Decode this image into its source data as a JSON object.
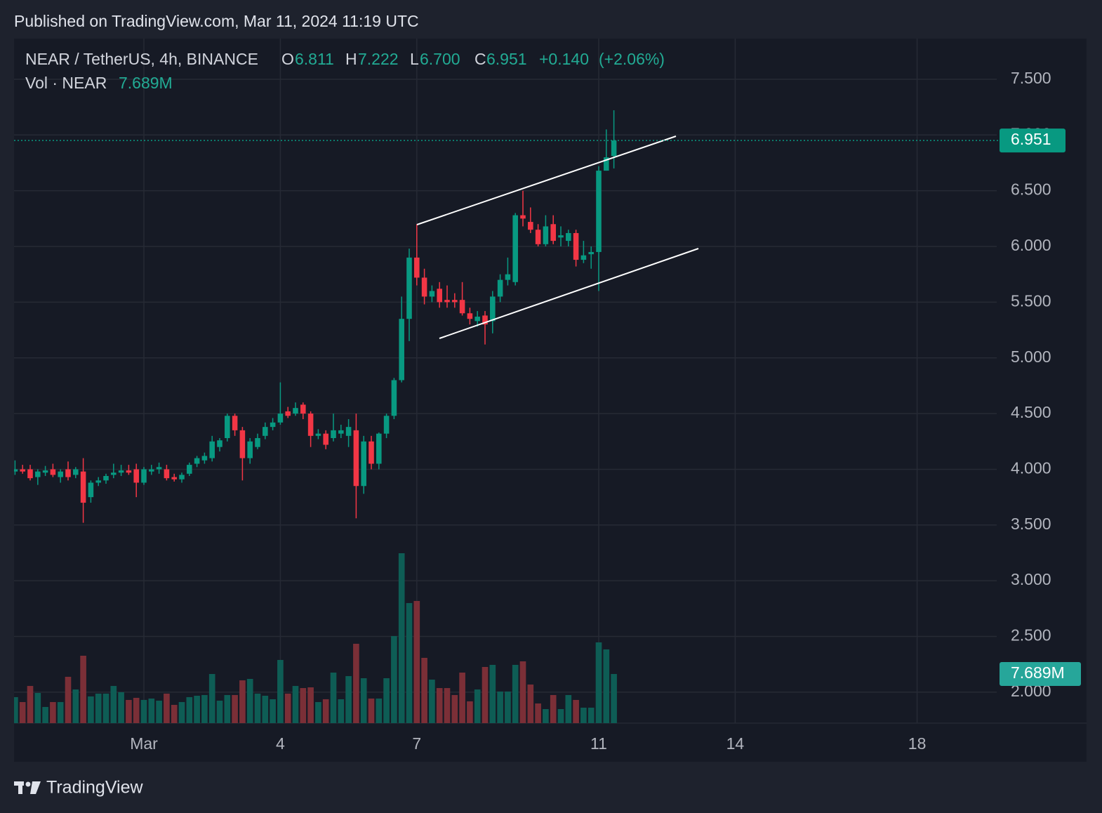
{
  "header": {
    "published": "Published on TradingView.com, Mar 11, 2024 11:19 UTC"
  },
  "footer": {
    "brand": "TradingView"
  },
  "chart_data": {
    "type": "candlestick",
    "title": "NEAR / TetherUS, 4h, BINANCE",
    "ohlc_keys": [
      "O",
      "H",
      "L",
      "C"
    ],
    "ohlc_labels": [
      "6.811",
      "7.222",
      "6.700",
      "6.951"
    ],
    "change": "+0.140",
    "change_percent": "(+2.06%)",
    "volume_name": "Vol · NEAR",
    "volume_label": "7.689M",
    "last_price_label": "6.951",
    "up_color": "#089981",
    "down_color": "#f23645",
    "volume_up_color": "#0e5d55",
    "volume_down_color": "#7b2f37",
    "grid": true,
    "ylim": [
      1.722,
      7.865
    ],
    "yticks": [
      {
        "value": 2,
        "label": "2.000"
      },
      {
        "value": 2.5,
        "label": "2.500"
      },
      {
        "value": 3,
        "label": "3.000"
      },
      {
        "value": 3.5,
        "label": "3.500"
      },
      {
        "value": 4,
        "label": "4.000"
      },
      {
        "value": 4.5,
        "label": "4.500"
      },
      {
        "value": 5,
        "label": "5.000"
      },
      {
        "value": 5.5,
        "label": "5.500"
      },
      {
        "value": 6,
        "label": "6.000"
      },
      {
        "value": 6.5,
        "label": "6.500"
      },
      {
        "value": 7,
        "label": "7.000"
      },
      {
        "value": 7.5,
        "label": "7.500"
      }
    ],
    "categories": [
      null,
      null,
      null,
      null,
      null,
      null,
      null,
      null,
      null,
      null,
      null,
      null,
      null,
      null,
      null,
      null,
      null,
      "Mar",
      null,
      null,
      null,
      null,
      null,
      null,
      null,
      null,
      null,
      null,
      null,
      null,
      null,
      null,
      null,
      null,
      null,
      "4",
      null,
      null,
      null,
      null,
      null,
      null,
      null,
      null,
      null,
      null,
      null,
      null,
      null,
      null,
      null,
      null,
      null,
      "7",
      null,
      null,
      null,
      null,
      null,
      null,
      null,
      null,
      null,
      null,
      null,
      null,
      null,
      null,
      null,
      null,
      null,
      null,
      null,
      null,
      null,
      null,
      null,
      "11",
      null,
      null,
      null,
      null,
      null,
      null,
      null,
      null,
      null,
      null,
      null,
      null,
      null,
      null,
      null,
      null,
      null,
      "14",
      null,
      null,
      null,
      null,
      null,
      null,
      null,
      null,
      null,
      null,
      null,
      null,
      null,
      null,
      null,
      null,
      null,
      null,
      null,
      null,
      null,
      null,
      null,
      "18",
      null,
      null,
      null,
      null,
      null,
      null,
      null,
      null,
      null,
      null
    ],
    "open": [
      3.98,
      4.0,
      4.0,
      3.93,
      3.97,
      4.0,
      3.93,
      4.0,
      3.95,
      3.98,
      3.75,
      3.88,
      3.9,
      3.95,
      3.97,
      3.99,
      4.0,
      3.88,
      3.98,
      4.0,
      4.0,
      3.93,
      3.91,
      3.96,
      4.05,
      4.08,
      4.1,
      4.2,
      4.28,
      4.48,
      4.35,
      4.1,
      4.2,
      4.3,
      4.38,
      4.42,
      4.52,
      4.5,
      4.58,
      4.5,
      4.3,
      4.32,
      4.28,
      4.32,
      4.3,
      4.35,
      3.85,
      4.25,
      4.05,
      4.32,
      4.48,
      4.8,
      5.35,
      5.9,
      5.72,
      5.55,
      5.62,
      5.52,
      5.52,
      5.52,
      5.4,
      5.33,
      5.38,
      5.33,
      5.55,
      5.7,
      5.68,
      6.28,
      6.22,
      6.15,
      6.02,
      6.2,
      6.08,
      6.05,
      6.12,
      5.88,
      5.93,
      5.95,
      6.68,
      6.811,
      null,
      null,
      null,
      null,
      null,
      null,
      null,
      null,
      null,
      null,
      null,
      null,
      null,
      null,
      null,
      null,
      null,
      null,
      null,
      null,
      null,
      null,
      null,
      null,
      null,
      null,
      null,
      null,
      null,
      null,
      null,
      null,
      null,
      null,
      null,
      null,
      null,
      null,
      null,
      null,
      null,
      null,
      null,
      null,
      null,
      null,
      null,
      null,
      null,
      null
    ],
    "high": [
      4.08,
      4.04,
      4.04,
      4.0,
      4.03,
      4.05,
      4.0,
      4.07,
      4.02,
      4.1,
      3.9,
      3.93,
      3.96,
      4.05,
      4.04,
      4.04,
      4.05,
      4.02,
      4.04,
      4.06,
      4.04,
      3.96,
      3.97,
      4.06,
      4.12,
      4.15,
      4.3,
      4.28,
      4.5,
      4.5,
      4.38,
      4.28,
      4.32,
      4.42,
      4.46,
      4.78,
      4.56,
      4.6,
      4.6,
      4.52,
      4.36,
      4.35,
      4.5,
      4.4,
      4.45,
      4.5,
      4.3,
      4.3,
      4.33,
      4.5,
      4.82,
      5.55,
      5.98,
      6.2,
      5.8,
      5.65,
      5.68,
      5.65,
      5.58,
      5.68,
      5.45,
      5.42,
      5.42,
      5.6,
      5.75,
      5.9,
      6.3,
      6.5,
      6.35,
      6.2,
      6.28,
      6.28,
      6.18,
      6.15,
      6.15,
      6.05,
      6.0,
      6.72,
      7.05,
      7.222,
      null,
      null,
      null,
      null,
      null,
      null,
      null,
      null,
      null,
      null,
      null,
      null,
      null,
      null,
      null,
      null,
      null,
      null,
      null,
      null,
      null,
      null,
      null,
      null,
      null,
      null,
      null,
      null,
      null,
      null,
      null,
      null,
      null,
      null,
      null,
      null,
      null,
      null,
      null,
      null,
      null,
      null,
      null,
      null,
      null,
      null,
      null,
      null,
      null,
      null
    ],
    "low": [
      3.95,
      3.96,
      3.9,
      3.86,
      3.94,
      3.93,
      3.88,
      3.9,
      3.92,
      3.52,
      3.7,
      3.85,
      3.87,
      3.92,
      3.94,
      3.95,
      3.75,
      3.86,
      3.95,
      3.96,
      3.9,
      3.89,
      3.88,
      3.94,
      4.02,
      4.05,
      4.07,
      4.16,
      4.25,
      4.3,
      3.9,
      4.05,
      4.18,
      4.27,
      4.35,
      4.4,
      4.46,
      4.48,
      4.45,
      4.2,
      4.27,
      4.18,
      4.25,
      4.28,
      4.2,
      3.56,
      3.78,
      4.0,
      4.0,
      4.28,
      4.45,
      4.78,
      5.15,
      5.65,
      5.48,
      5.5,
      5.45,
      5.45,
      5.45,
      5.38,
      5.3,
      5.28,
      5.12,
      5.22,
      5.5,
      5.65,
      5.65,
      6.18,
      6.12,
      6.0,
      6.0,
      6.02,
      6.0,
      6.0,
      5.82,
      5.85,
      5.8,
      5.6,
      6.68,
      6.7,
      null,
      null,
      null,
      null,
      null,
      null,
      null,
      null,
      null,
      null,
      null,
      null,
      null,
      null,
      null,
      null,
      null,
      null,
      null,
      null,
      null,
      null,
      null,
      null,
      null,
      null,
      null,
      null,
      null,
      null,
      null,
      null,
      null,
      null,
      null,
      null,
      null,
      null,
      null,
      null,
      null,
      null,
      null,
      null,
      null,
      null,
      null,
      null,
      null,
      null
    ],
    "close": [
      4.0,
      3.98,
      3.92,
      3.98,
      3.99,
      3.95,
      3.98,
      3.93,
      4.0,
      3.7,
      3.88,
      3.9,
      3.94,
      3.97,
      3.99,
      3.97,
      3.88,
      4.0,
      4.0,
      4.02,
      3.92,
      3.91,
      3.95,
      4.04,
      4.1,
      4.12,
      4.25,
      4.26,
      4.48,
      4.35,
      4.1,
      4.25,
      4.28,
      4.38,
      4.42,
      4.5,
      4.48,
      4.55,
      4.5,
      4.3,
      4.32,
      4.22,
      4.35,
      4.35,
      4.38,
      3.85,
      4.25,
      4.05,
      4.32,
      4.48,
      4.8,
      5.35,
      5.9,
      5.72,
      5.55,
      5.6,
      5.5,
      5.5,
      5.5,
      5.4,
      5.35,
      5.37,
      5.3,
      5.55,
      5.7,
      5.75,
      6.28,
      6.25,
      6.15,
      6.02,
      6.18,
      6.05,
      6.1,
      6.12,
      5.88,
      5.92,
      5.95,
      6.68,
      6.8,
      6.951,
      null,
      null,
      null,
      null,
      null,
      null,
      null,
      null,
      null,
      null,
      null,
      null,
      null,
      null,
      null,
      null,
      null,
      null,
      null,
      null,
      null,
      null,
      null,
      null,
      null,
      null,
      null,
      null,
      null,
      null,
      null,
      null,
      null,
      null,
      null,
      null,
      null,
      null,
      null,
      null,
      null,
      null,
      null,
      null,
      null,
      null,
      null,
      null,
      null,
      null
    ],
    "volume": [
      4.07,
      3.3,
      5.82,
      4.73,
      2.53,
      3.3,
      3.3,
      7.25,
      5.27,
      10.55,
      4.18,
      4.62,
      4.62,
      5.82,
      4.84,
      3.63,
      3.96,
      3.63,
      3.85,
      3.52,
      4.62,
      2.86,
      3.3,
      4.07,
      4.29,
      4.4,
      7.69,
      3.52,
      4.4,
      4.4,
      6.7,
      6.92,
      4.62,
      4.29,
      3.74,
      9.89,
      4.62,
      5.82,
      5.49,
      5.6,
      3.3,
      3.74,
      7.91,
      3.74,
      7.36,
      12.42,
      7.03,
      3.85,
      3.85,
      7.03,
      13.63,
      26.59,
      18.79,
      19.12,
      10.22,
      6.81,
      5.49,
      5.49,
      4.4,
      7.91,
      3.41,
      5.27,
      8.79,
      9.12,
      4.95,
      4.95,
      9.12,
      9.67,
      6.04,
      3.08,
      2.2,
      4.4,
      2.2,
      4.4,
      3.63,
      2.42,
      2.42,
      12.64,
      11.54,
      7.689,
      null,
      null,
      null,
      null,
      null,
      null,
      null,
      null,
      null,
      null,
      null,
      null,
      null,
      null,
      null,
      null,
      null,
      null,
      null,
      null,
      null,
      null,
      null,
      null,
      null,
      null,
      null,
      null,
      null,
      null,
      null,
      null,
      null,
      null,
      null,
      null,
      null,
      null,
      null,
      null,
      null,
      null,
      null,
      null,
      null,
      null,
      null,
      null,
      null,
      null
    ]
  }
}
